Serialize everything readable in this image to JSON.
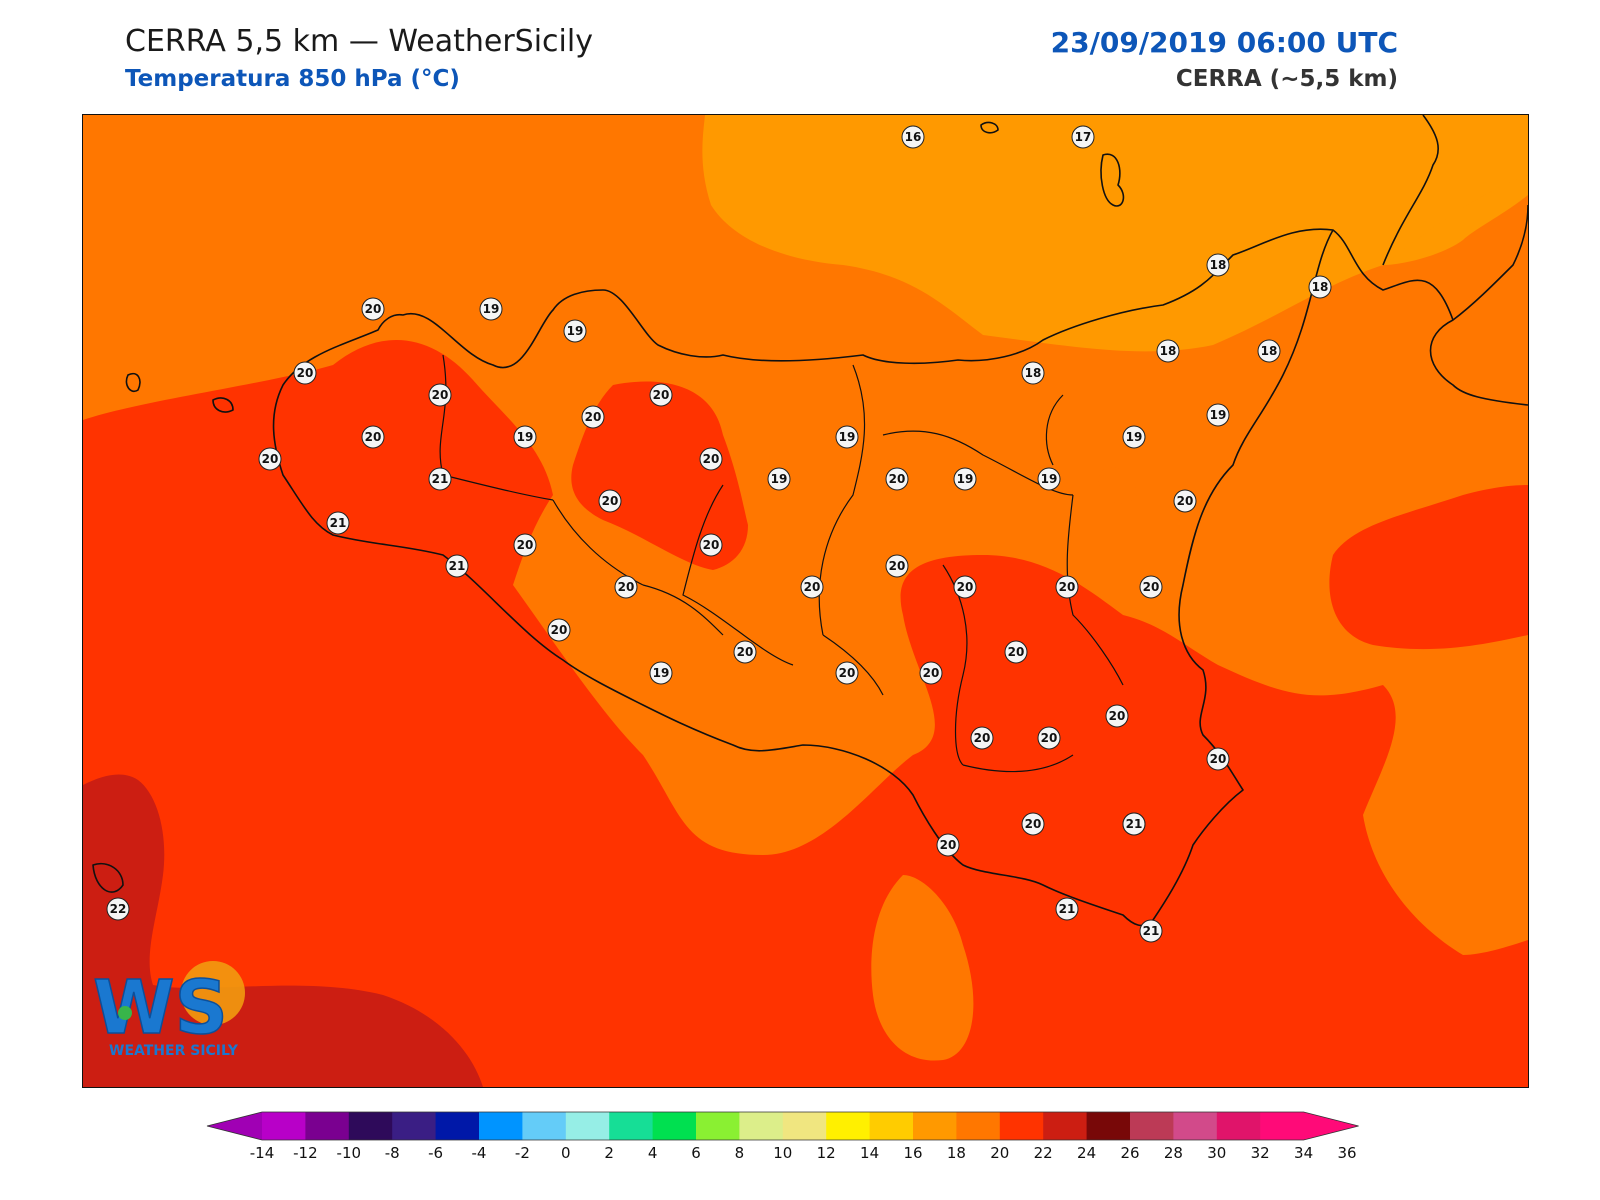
{
  "header": {
    "title": "CERRA 5,5 km — WeatherSicily",
    "subtitle": "Temperatura 850 hPa (°C)",
    "datetime": "23/09/2019 06:00 UTC",
    "model": "CERRA (~5,5 km)"
  },
  "logo": {
    "letters": "WS",
    "name": "WEATHER SICILY"
  },
  "colors": {
    "t16": "#ff9900",
    "t18": "#ff7700",
    "t20": "#ff3300",
    "t22": "#cc1e12",
    "coast": "#111111",
    "title_blue": "#0d56b8"
  },
  "colorbar": {
    "ticks": [
      "-14",
      "-12",
      "-10",
      "-8",
      "-6",
      "-4",
      "-2",
      "0",
      "2",
      "4",
      "6",
      "8",
      "10",
      "12",
      "14",
      "16",
      "18",
      "20",
      "22",
      "24",
      "26",
      "28",
      "30",
      "32",
      "34",
      "36"
    ],
    "colors": [
      "#b800c8",
      "#7a0090",
      "#2e0a5a",
      "#3a1e84",
      "#0018a8",
      "#0094ff",
      "#64ccf8",
      "#96eee6",
      "#16de96",
      "#00e050",
      "#8af032",
      "#dcee8a",
      "#f0e680",
      "#fff000",
      "#ffcc00",
      "#ff9900",
      "#ff7700",
      "#ff3300",
      "#cc1e12",
      "#780808",
      "#bc3a56",
      "#d24a8a",
      "#e0146a",
      "#ff0a78"
    ],
    "extend_low": "#a000b4",
    "extend_high": "#ff0a78"
  },
  "stations": [
    {
      "v": "16"
    },
    {
      "v": "17"
    },
    {
      "v": "20"
    },
    {
      "v": "19"
    },
    {
      "v": "19"
    },
    {
      "v": "18"
    },
    {
      "v": "18"
    },
    {
      "v": "20"
    },
    {
      "v": "20"
    },
    {
      "v": "20"
    },
    {
      "v": "20"
    },
    {
      "v": "20"
    },
    {
      "v": "19"
    },
    {
      "v": "19"
    },
    {
      "v": "18"
    },
    {
      "v": "18"
    },
    {
      "v": "18"
    },
    {
      "v": "20"
    },
    {
      "v": "21"
    },
    {
      "v": "20"
    },
    {
      "v": "20"
    },
    {
      "v": "20"
    },
    {
      "v": "19"
    },
    {
      "v": "20"
    },
    {
      "v": "19"
    },
    {
      "v": "19"
    },
    {
      "v": "19"
    },
    {
      "v": "19"
    },
    {
      "v": "20"
    },
    {
      "v": "21"
    },
    {
      "v": "21"
    },
    {
      "v": "20"
    },
    {
      "v": "20"
    },
    {
      "v": "20"
    },
    {
      "v": "20"
    },
    {
      "v": "20"
    },
    {
      "v": "20"
    },
    {
      "v": "20"
    },
    {
      "v": "20"
    },
    {
      "v": "20"
    },
    {
      "v": "20"
    },
    {
      "v": "19"
    },
    {
      "v": "20"
    },
    {
      "v": "20"
    },
    {
      "v": "20"
    },
    {
      "v": "20"
    },
    {
      "v": "20"
    },
    {
      "v": "20"
    },
    {
      "v": "20"
    },
    {
      "v": "20"
    },
    {
      "v": "20"
    },
    {
      "v": "21"
    },
    {
      "v": "21"
    },
    {
      "v": "21"
    },
    {
      "v": "22"
    }
  ]
}
